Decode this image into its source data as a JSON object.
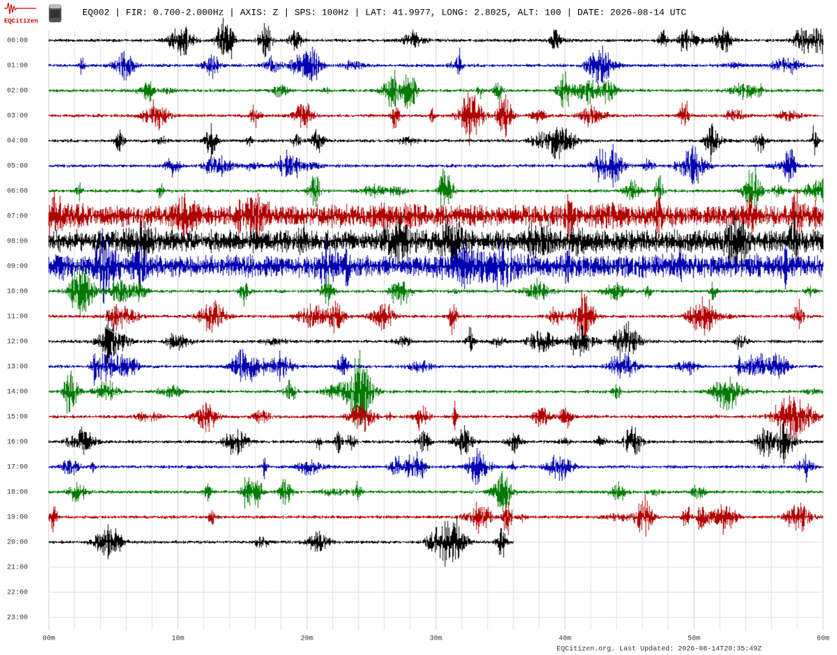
{
  "header": {
    "logo_text": "EQCitizen",
    "title": "EQ002 | FIR: 0.700-2.000Hz | AXIS: Z | SPS: 100Hz | LAT: 41.9977, LONG: 2.8025, ALT: 100 | DATE: 2026-08-14 UTC"
  },
  "rows": [
    {
      "label": "00:00",
      "color": "#000000",
      "end": 60
    },
    {
      "label": "01:00",
      "color": "#0000b0",
      "end": 60
    },
    {
      "label": "02:00",
      "color": "#007a00",
      "end": 60
    },
    {
      "label": "03:00",
      "color": "#b00000",
      "end": 60
    },
    {
      "label": "04:00",
      "color": "#000000",
      "end": 60
    },
    {
      "label": "05:00",
      "color": "#0000b0",
      "end": 60
    },
    {
      "label": "06:00",
      "color": "#007a00",
      "end": 60
    },
    {
      "label": "07:00",
      "color": "#b00000",
      "end": 60
    },
    {
      "label": "08:00",
      "color": "#000000",
      "end": 60
    },
    {
      "label": "09:00",
      "color": "#0000b0",
      "end": 60
    },
    {
      "label": "10:00",
      "color": "#007a00",
      "end": 60
    },
    {
      "label": "11:00",
      "color": "#b00000",
      "end": 60
    },
    {
      "label": "12:00",
      "color": "#000000",
      "end": 60
    },
    {
      "label": "13:00",
      "color": "#0000b0",
      "end": 60
    },
    {
      "label": "14:00",
      "color": "#007a00",
      "end": 60
    },
    {
      "label": "15:00",
      "color": "#b00000",
      "end": 60
    },
    {
      "label": "16:00",
      "color": "#000000",
      "end": 60
    },
    {
      "label": "17:00",
      "color": "#0000b0",
      "end": 60
    },
    {
      "label": "18:00",
      "color": "#007a00",
      "end": 60
    },
    {
      "label": "19:00",
      "color": "#b00000",
      "end": 60
    },
    {
      "label": "20:00",
      "color": "#000000",
      "end": 36
    },
    {
      "label": "21:00",
      "color": null,
      "end": null
    },
    {
      "label": "22:00",
      "color": null,
      "end": null
    },
    {
      "label": "23:00",
      "color": null,
      "end": null
    }
  ],
  "x_axis": {
    "lim": [
      0,
      60
    ],
    "ticks": [
      {
        "value": 0,
        "label": "00m"
      },
      {
        "value": 10,
        "label": "10m"
      },
      {
        "value": 20,
        "label": "20m"
      },
      {
        "value": 30,
        "label": "30m"
      },
      {
        "value": 40,
        "label": "40m"
      },
      {
        "value": 50,
        "label": "50m"
      },
      {
        "value": 60,
        "label": "60m"
      }
    ],
    "grid_step": 2
  },
  "footer": "EQCitizen.org. Last Updated: 2026-08-14T20:35:49Z"
}
